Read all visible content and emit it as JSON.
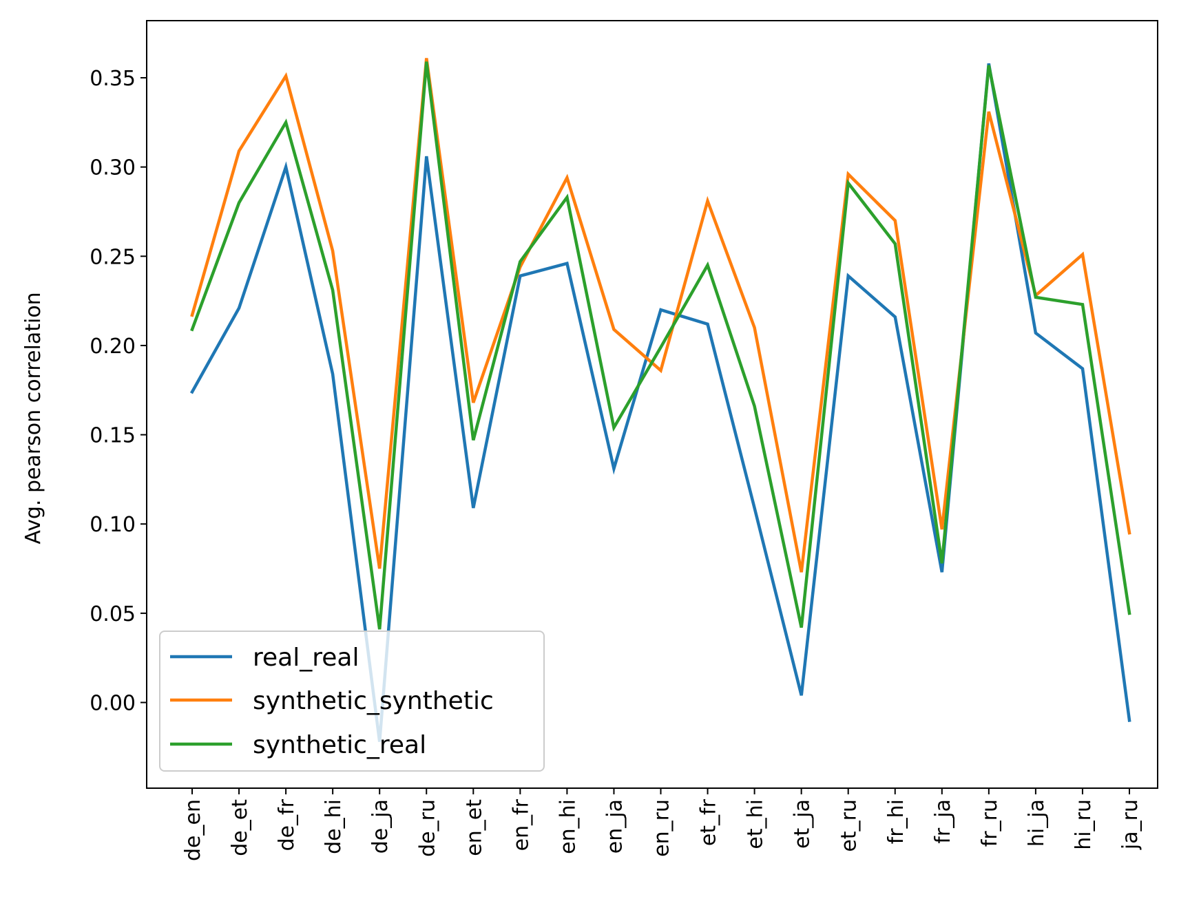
{
  "chart_data": {
    "type": "line",
    "title": "",
    "xlabel": "",
    "ylabel": "Avg. pearson correlation",
    "categories": [
      "de_en",
      "de_et",
      "de_fr",
      "de_hi",
      "de_ja",
      "de_ru",
      "en_et",
      "en_fr",
      "en_hi",
      "en_ja",
      "en_ru",
      "et_fr",
      "et_hi",
      "et_ja",
      "et_ru",
      "fr_hi",
      "fr_ja",
      "fr_ru",
      "hi_ja",
      "hi_ru",
      "ja_ru"
    ],
    "ylim": [
      -0.048,
      0.382
    ],
    "yticks": [
      "0.00",
      "0.05",
      "0.10",
      "0.15",
      "0.20",
      "0.25",
      "0.30",
      "0.35"
    ],
    "grid": false,
    "legend_position": "lower-left",
    "series": [
      {
        "name": "real_real",
        "color": "#1f77b4",
        "values": [
          0.174,
          0.221,
          0.3,
          0.184,
          -0.022,
          0.306,
          0.109,
          0.239,
          0.246,
          0.131,
          0.22,
          0.212,
          0.109,
          0.004,
          0.239,
          0.216,
          0.073,
          0.358,
          0.207,
          0.187,
          -0.01
        ]
      },
      {
        "name": "synthetic_synthetic",
        "color": "#ff7f0e",
        "values": [
          0.217,
          0.309,
          0.351,
          0.253,
          0.075,
          0.361,
          0.168,
          0.244,
          0.294,
          0.209,
          0.186,
          0.281,
          0.21,
          0.073,
          0.296,
          0.27,
          0.097,
          0.331,
          0.228,
          0.251,
          0.095
        ]
      },
      {
        "name": "synthetic_real",
        "color": "#2ca02c",
        "values": [
          0.209,
          0.28,
          0.325,
          0.231,
          0.041,
          0.359,
          0.147,
          0.247,
          0.283,
          0.154,
          0.199,
          0.245,
          0.166,
          0.042,
          0.291,
          0.257,
          0.078,
          0.357,
          0.227,
          0.223,
          0.05
        ]
      }
    ]
  }
}
